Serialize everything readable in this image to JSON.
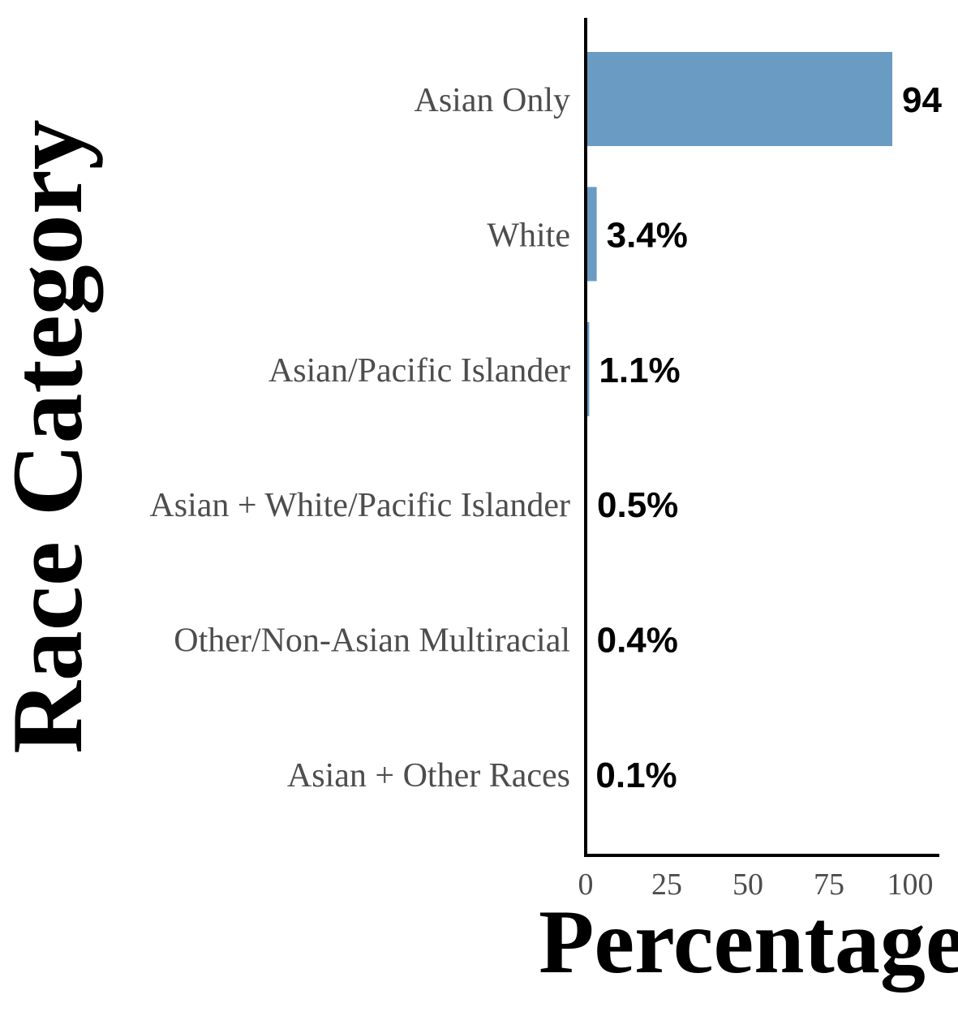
{
  "chart_data": {
    "type": "bar",
    "orientation": "horizontal",
    "categories": [
      "Asian Only",
      "White",
      "Asian/Pacific Islander",
      "Asian + White/Pacific Islander",
      "Other/Non-Asian Multiracial",
      "Asian + Other Races"
    ],
    "values": [
      94.5,
      3.4,
      1.1,
      0.5,
      0.4,
      0.1
    ],
    "data_labels": [
      "94",
      "3.4%",
      "1.1%",
      "0.5%",
      "0.4%",
      "0.1%"
    ],
    "xlabel": "Percentage",
    "ylabel": "Race Category",
    "xlim": [
      0,
      100
    ],
    "xticks": [
      0,
      25,
      50,
      75,
      100
    ],
    "xtick_labels": [
      "0",
      "25",
      "50",
      "75",
      "100"
    ],
    "bar_color": "#6a9bc3",
    "grid": false,
    "legend": "none"
  }
}
